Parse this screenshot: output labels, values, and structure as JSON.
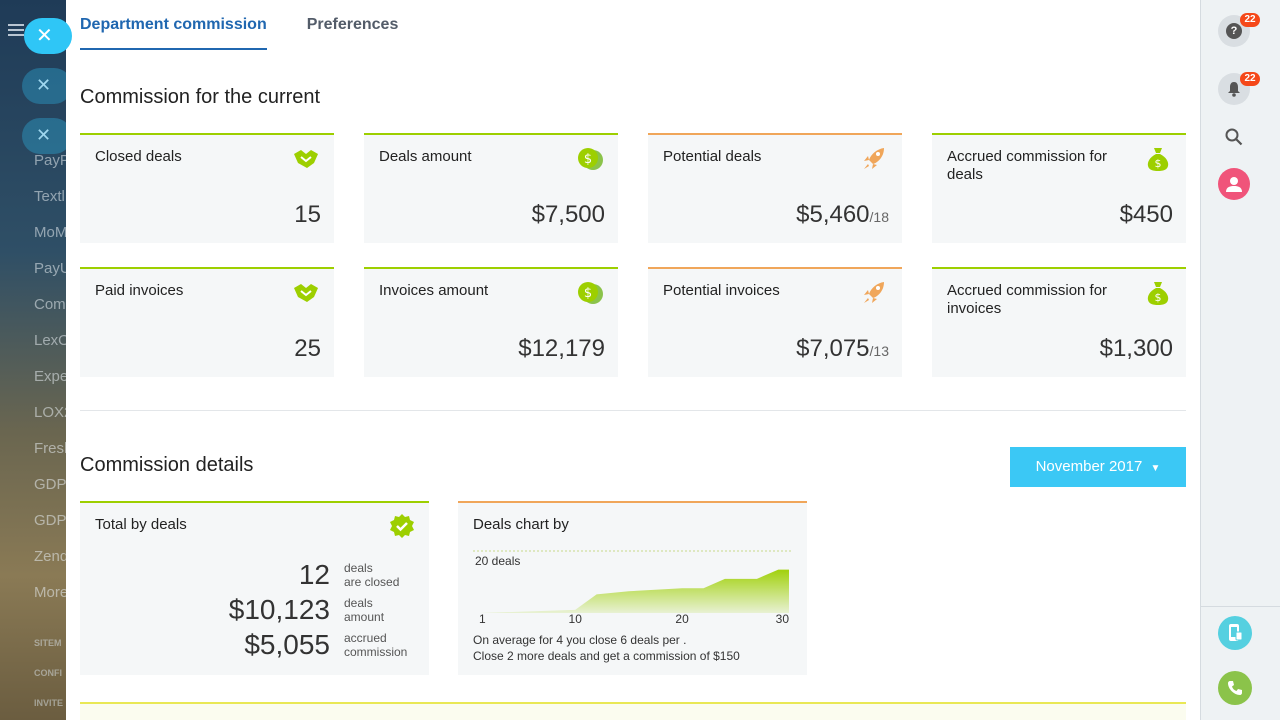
{
  "background": {
    "items": [
      "PayP",
      "Textl",
      "MoM",
      "PayU",
      "Com",
      "LexO",
      "Expe",
      "LOX2",
      "Fresh",
      "GDP",
      "GDP",
      "Zend",
      "More"
    ],
    "small_items": [
      "SITEM",
      "CONFI",
      "INVITE"
    ]
  },
  "tabs": [
    {
      "label": "Department commission",
      "active": true
    },
    {
      "label": "Preferences",
      "active": false
    }
  ],
  "current": {
    "title": "Commission for the current",
    "cards": [
      {
        "label": "Closed deals",
        "value": "15",
        "icon": "handshake-icon"
      },
      {
        "label": "Deals amount",
        "value": "$7,500",
        "icon": "coins-icon"
      },
      {
        "label": "Potential deals",
        "value": "$5,460",
        "suffix": "/18",
        "icon": "rocket-icon"
      },
      {
        "label": "Accrued commission for deals",
        "value": "$450",
        "icon": "money-bag-icon"
      },
      {
        "label": "Paid invoices",
        "value": "25",
        "icon": "handshake-icon"
      },
      {
        "label": "Invoices amount",
        "value": "$12,179",
        "icon": "coins-icon"
      },
      {
        "label": "Potential invoices",
        "value": "$7,075",
        "suffix": "/13",
        "icon": "rocket-icon"
      },
      {
        "label": "Accrued commission for invoices",
        "value": "$1,300",
        "icon": "money-bag-icon"
      }
    ]
  },
  "details": {
    "title": "Commission details",
    "month_button": "November 2017",
    "total": {
      "label": "Total by deals",
      "rows": [
        {
          "num": "12",
          "desc1": "deals",
          "desc2": "are closed"
        },
        {
          "num": "$10,123",
          "desc1": "deals",
          "desc2": "amount"
        },
        {
          "num": "$5,055",
          "desc1": "accrued",
          "desc2": "commission"
        }
      ]
    },
    "chart": {
      "label": "Deals chart by",
      "note1": "On average for 4 you close 6 deals per .",
      "note2": "Close 2 more deals and get a commission of $150"
    }
  },
  "chart_data": {
    "type": "area",
    "x": [
      1,
      10,
      12,
      15,
      20,
      22,
      24,
      27,
      29,
      30
    ],
    "values": [
      0,
      1,
      6,
      7,
      8,
      8,
      11,
      11,
      14,
      14
    ],
    "xticks": [
      "1",
      "10",
      "20",
      "30"
    ],
    "ref_label": "20 deals",
    "ref_value": 20,
    "xlim": [
      1,
      30
    ],
    "ylim": [
      0,
      20
    ],
    "colors": {
      "fill": "#9dcf00",
      "ref_line": "#c7d98a"
    }
  },
  "right_bar": {
    "help_badge": "22",
    "bell_badge": "22"
  },
  "colors": {
    "accent_green": "#9dcf00",
    "accent_orange": "#f0a65a",
    "button_blue": "#3bc8f5",
    "tab_active": "#2067b0"
  }
}
